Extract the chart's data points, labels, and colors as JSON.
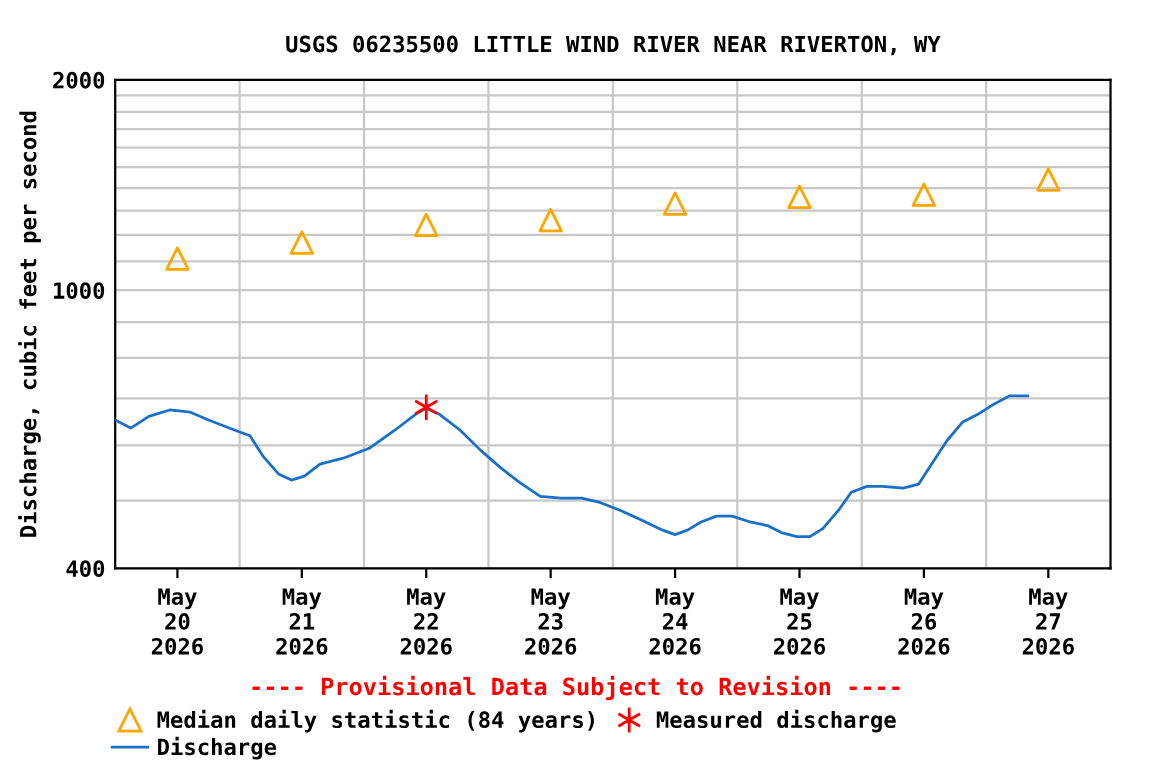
{
  "chart_data": {
    "type": "line",
    "title": "USGS 06235500 LITTLE WIND RIVER NEAR RIVERTON, WY",
    "ylabel": "Discharge, cubic feet per second",
    "log": "y",
    "grid": true,
    "legend": "bottom",
    "xlim": [
      "2026-05-20T00:00",
      "2026-05-28T00:00"
    ],
    "xticks": [
      {
        "value": "2026-05-20T12:00",
        "label": "May\n20\n2026"
      },
      {
        "value": "2026-05-21T00:00",
        "label": null
      },
      {
        "value": "2026-05-21T12:00",
        "label": "May\n21\n2026"
      },
      {
        "value": "2026-05-22T00:00",
        "label": null
      },
      {
        "value": "2026-05-22T12:00",
        "label": "May\n22\n2026"
      },
      {
        "value": "2026-05-23T00:00",
        "label": null
      },
      {
        "value": "2026-05-23T12:00",
        "label": "May\n23\n2026"
      },
      {
        "value": "2026-05-24T00:00",
        "label": null
      },
      {
        "value": "2026-05-24T12:00",
        "label": "May\n24\n2026"
      },
      {
        "value": "2026-05-25T00:00",
        "label": null
      },
      {
        "value": "2026-05-25T12:00",
        "label": "May\n25\n2026"
      },
      {
        "value": "2026-05-26T00:00",
        "label": null
      },
      {
        "value": "2026-05-26T12:00",
        "label": "May\n26\n2026"
      },
      {
        "value": "2026-05-27T00:00",
        "label": null
      },
      {
        "value": "2026-05-27T12:00",
        "label": "May\n27\n2026"
      }
    ],
    "ylim": [
      400,
      2000
    ],
    "yticks": [
      400,
      {
        "value": 500,
        "label": null
      },
      {
        "value": 600,
        "label": null
      },
      {
        "value": 700,
        "label": null
      },
      {
        "value": 800,
        "label": null
      },
      {
        "value": 900,
        "label": null
      },
      1000,
      {
        "value": 1100,
        "label": null
      },
      {
        "value": 1200,
        "label": null
      },
      {
        "value": 1300,
        "label": null
      },
      {
        "value": 1400,
        "label": null
      },
      {
        "value": 1500,
        "label": null
      },
      {
        "value": 1600,
        "label": null
      },
      {
        "value": 1700,
        "label": null
      },
      {
        "value": 1800,
        "label": null
      },
      {
        "value": 1900,
        "label": null
      },
      2000
    ],
    "annotations": [
      "---- Provisional Data Subject to Revision ----"
    ],
    "series": [
      {
        "name": "Median daily statistic (84 years)",
        "type": "scatter",
        "marker": "triangle",
        "color": "#ffa500",
        "x": [
          "2026-05-20T12:00",
          "2026-05-21T12:00",
          "2026-05-22T12:00",
          "2026-05-23T12:00",
          "2026-05-24T12:00",
          "2026-05-25T12:00",
          "2026-05-26T12:00",
          "2026-05-27T12:00"
        ],
        "values": [
          1110,
          1170,
          1240,
          1260,
          1330,
          1360,
          1370,
          1440
        ]
      },
      {
        "name": "Measured discharge",
        "type": "scatter",
        "marker": "cross",
        "color": "#ff0000",
        "x": [
          "2026-05-22T12:00"
        ],
        "values": [
          680
        ]
      },
      {
        "name": "Discharge",
        "marker": "none",
        "color": "#1a70c8",
        "x": [
          "2026-05-20T00:00",
          "2026-05-20T03:00",
          "2026-05-20T06:30",
          "2026-05-20T10:30",
          "2026-05-20T14:30",
          "2026-05-20T18:00",
          "2026-05-20T23:00",
          "2026-05-21T02:00",
          "2026-05-21T04:30",
          "2026-05-21T07:30",
          "2026-05-21T10:00",
          "2026-05-21T12:30",
          "2026-05-21T15:30",
          "2026-05-21T20:00",
          "2026-05-22T01:00",
          "2026-05-22T06:00",
          "2026-05-22T10:00",
          "2026-05-22T12:00",
          "2026-05-22T14:30",
          "2026-05-22T18:30",
          "2026-05-22T22:30",
          "2026-05-23T02:30",
          "2026-05-23T06:00",
          "2026-05-23T10:00",
          "2026-05-23T14:00",
          "2026-05-23T18:00",
          "2026-05-23T21:30",
          "2026-05-24T01:30",
          "2026-05-24T05:30",
          "2026-05-24T09:30",
          "2026-05-24T12:00",
          "2026-05-24T14:30",
          "2026-05-24T17:00",
          "2026-05-24T20:00",
          "2026-05-24T23:00",
          "2026-05-25T02:30",
          "2026-05-25T06:00",
          "2026-05-25T08:30",
          "2026-05-25T11:30",
          "2026-05-25T14:00",
          "2026-05-25T16:30",
          "2026-05-25T19:30",
          "2026-05-25T22:00",
          "2026-05-26T01:00",
          "2026-05-26T04:00",
          "2026-05-26T08:00",
          "2026-05-26T11:00",
          "2026-05-26T13:30",
          "2026-05-26T16:30",
          "2026-05-26T19:30",
          "2026-05-26T22:30",
          "2026-05-27T01:30",
          "2026-05-27T04:30",
          "2026-05-27T08:00"
        ],
        "values": [
          652,
          635,
          660,
          674,
          669,
          652,
          631,
          619,
          579,
          546,
          535,
          542,
          564,
          575,
          594,
          631,
          665,
          678,
          665,
          631,
          590,
          556,
          531,
          507,
          504,
          504,
          497,
          484,
          469,
          454,
          447,
          454,
          466,
          475,
          475,
          466,
          460,
          450,
          444,
          444,
          456,
          484,
          514,
          524,
          524,
          521,
          528,
          564,
          610,
          648,
          665,
          687,
          706,
          706
        ]
      }
    ]
  }
}
